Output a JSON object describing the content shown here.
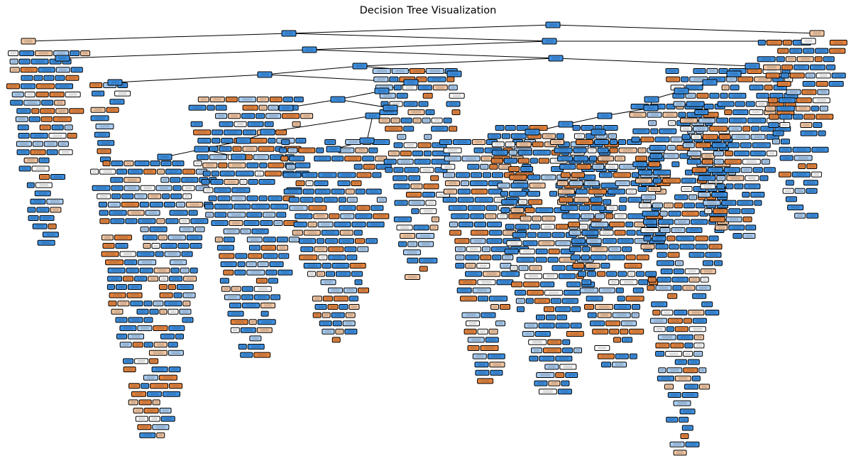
{
  "title": "Decision Tree Visualization",
  "colors": {
    "class_blue": "#3d8fe0",
    "class_blue_light": "#a9cdf3",
    "class_orange": "#e58139",
    "class_orange_light": "#f3c6a2",
    "neutral": "#ffffff",
    "edge": "#000000"
  },
  "classes": [
    "orange",
    "blue"
  ],
  "tree": {
    "root_class": "blue",
    "levels_shown": 50
  }
}
